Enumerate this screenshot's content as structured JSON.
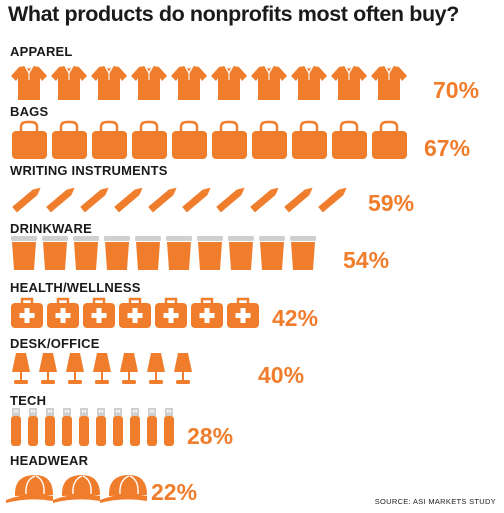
{
  "title": "What products do nonprofits most often buy?",
  "source": "SOURCE: ASI MARKETS STUDY",
  "colors": {
    "accent": "#f07d2c",
    "grey": "#cfcfcf"
  },
  "chart_data": {
    "type": "pictograph",
    "title": "What products do nonprofits most often buy?",
    "unit": "%",
    "categories": [
      "APPAREL",
      "BAGS",
      "WRITING INSTRUMENTS",
      "DRINKWARE",
      "HEALTH/WELLNESS",
      "DESK/OFFICE",
      "TECH",
      "HEADWEAR"
    ],
    "values": [
      70,
      67,
      59,
      54,
      42,
      40,
      28,
      22
    ],
    "labels": [
      "70%",
      "67%",
      "59%",
      "54%",
      "42%",
      "40%",
      "28%",
      "22%"
    ],
    "icons": [
      "shirt-icon",
      "bag-icon",
      "pencil-icon",
      "cup-icon",
      "first-aid-kit-icon",
      "lamp-icon",
      "usb-drive-icon",
      "cap-icon"
    ],
    "icon_counts": [
      10,
      10,
      10,
      10,
      7,
      7,
      10,
      3
    ]
  }
}
